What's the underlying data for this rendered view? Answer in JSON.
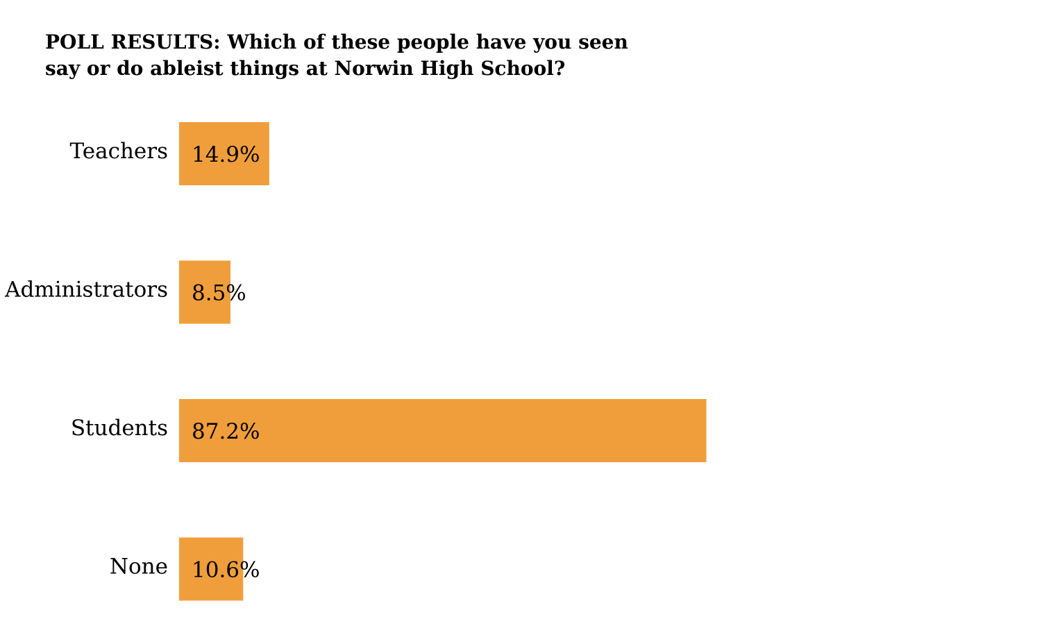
{
  "chart_data": {
    "type": "bar",
    "orientation": "horizontal",
    "title_lines": [
      "POLL RESULTS: Which of these people have you seen",
      "say or do ableist things at Norwin High School?"
    ],
    "categories": [
      "Teachers",
      "Administrators",
      "Students",
      "None"
    ],
    "values": [
      14.9,
      8.5,
      87.2,
      10.6
    ],
    "data_labels": [
      "14.9%",
      "8.5%",
      "87.2%",
      "10.6%"
    ],
    "unit": "%",
    "bar_color": "#F09E3C",
    "label_color": "#000000",
    "grid": false,
    "legend": "none",
    "xlim": [
      0,
      100
    ]
  }
}
